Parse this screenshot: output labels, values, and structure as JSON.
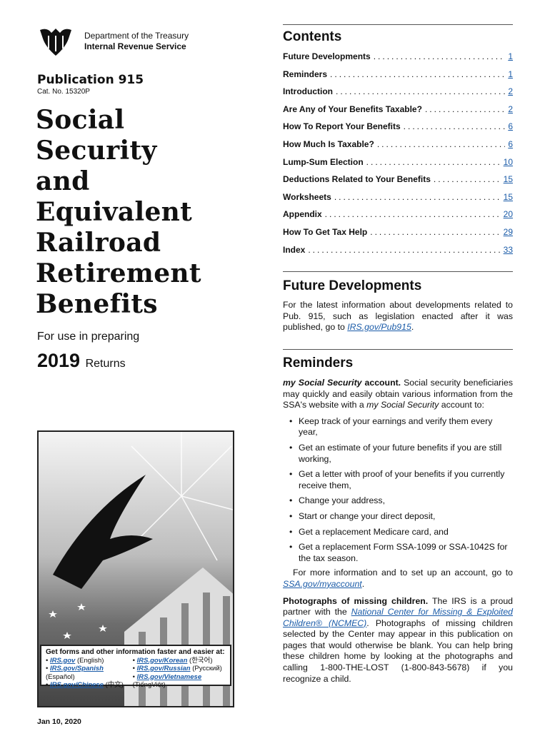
{
  "header": {
    "department": "Department of the Treasury",
    "agency": "Internal Revenue Service",
    "publication": "Publication 915",
    "cat_no": "Cat. No. 15320P"
  },
  "title_lines": [
    "Social",
    "Security",
    "and",
    "Equivalent",
    "Railroad",
    "Retirement",
    "Benefits"
  ],
  "for_use": "For use in preparing",
  "year": "2019",
  "returns": "Returns",
  "infobox": {
    "heading": "Get forms and other information faster and easier at:",
    "links": [
      {
        "link": "IRS.gov",
        "lang": "(English)"
      },
      {
        "link": "IRS.gov/Spanish",
        "lang": "(Español)"
      },
      {
        "link": "IRS.gov/Chinese",
        "lang": "(中文)"
      },
      {
        "link": "IRS.gov/Korean",
        "lang": "(한국어)"
      },
      {
        "link": "IRS.gov/Russian",
        "lang": "(Pусский)"
      },
      {
        "link": "IRS.gov/Vietnamese",
        "lang": "(TiếngViệt)"
      }
    ]
  },
  "date": "Jan 10, 2020",
  "contents": {
    "heading": "Contents",
    "items": [
      {
        "label": "Future Developments",
        "page": "1"
      },
      {
        "label": "Reminders",
        "page": "1"
      },
      {
        "label": "Introduction",
        "page": "2"
      },
      {
        "label": "Are Any of Your Benefits Taxable?",
        "page": "2"
      },
      {
        "label": "How To Report Your Benefits",
        "page": "6"
      },
      {
        "label": "How Much Is Taxable?",
        "page": "6"
      },
      {
        "label": "Lump-Sum Election",
        "page": "10"
      },
      {
        "label": "Deductions Related to Your Benefits",
        "page": "15"
      },
      {
        "label": "Worksheets",
        "page": "15"
      },
      {
        "label": "Appendix",
        "page": "20"
      },
      {
        "label": "How To Get Tax Help",
        "page": "29"
      },
      {
        "label": "Index",
        "page": "33"
      }
    ]
  },
  "future": {
    "heading": "Future Developments",
    "text": "For the latest information about developments related to Pub. 915, such as legislation enacted after it was published, go to ",
    "link": "IRS.gov/Pub915",
    "end": "."
  },
  "reminders": {
    "heading": "Reminders",
    "p1_lead": "my Social Security",
    "p1_lead2": " account.",
    "p1_a": " Social security beneficiaries may quickly and easily obtain various information from the SSA's website with a ",
    "p1_em": "my Social Security",
    "p1_b": " account to:",
    "bullets": [
      "Keep track of your earnings and verify them every year,",
      "Get an estimate of your future benefits if you are still working,",
      "Get a letter with proof of your benefits if you currently receive them,",
      "Change your address,",
      "Start or change your direct deposit,",
      "Get a replacement Medicare card, and",
      "Get a replacement Form SSA-1099 or SSA-1042S for the tax season."
    ],
    "more": "For more information and to set up an account, go to ",
    "more_link": "SSA.gov/myaccount",
    "more_end": ".",
    "p2_lead": "Photographs of missing children.",
    "p2_a": " The IRS is a proud partner with the ",
    "p2_link": "National Center for Missing & Exploited Children® (NCMEC)",
    "p2_b": ". Photographs of missing children selected by the Center may appear in this publication on pages that would otherwise be blank. You can help bring these children home by looking at the photographs and calling 1-800-THE-LOST (1-800-843-5678) if you recognize a child."
  }
}
